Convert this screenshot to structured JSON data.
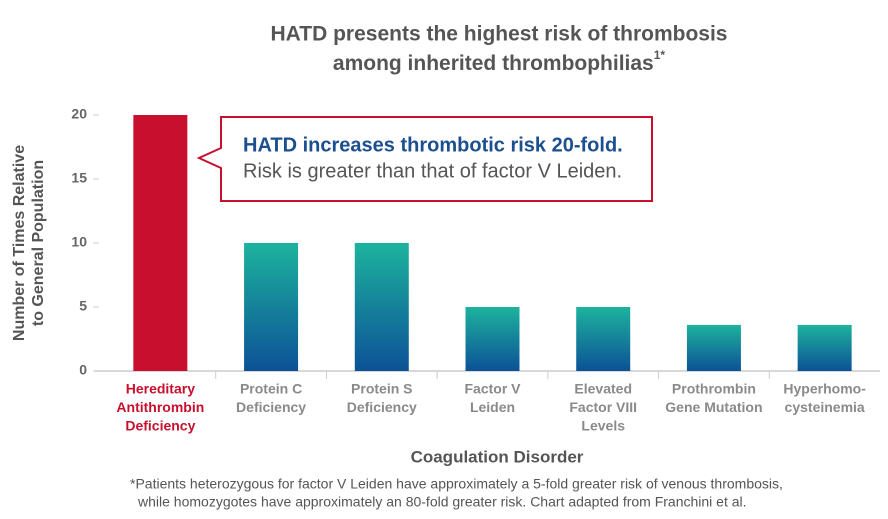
{
  "chart_data": {
    "type": "bar",
    "title": [
      "HATD presents the highest risk of thrombosis",
      "among inherited thrombophilias"
    ],
    "title_superscript": "1*",
    "callout": [
      "HATD increases thrombotic risk 20-fold.",
      "Risk is greater than that of factor V Leiden."
    ],
    "categories": [
      [
        "Hereditary",
        "Antithrombin",
        "Deficiency"
      ],
      [
        "Protein C",
        "Deficiency"
      ],
      [
        "Protein S",
        "Deficiency"
      ],
      [
        "Factor V",
        "Leiden"
      ],
      [
        "Elevated",
        "Factor VIII",
        "Levels"
      ],
      [
        "Prothrombin",
        "Gene Mutation"
      ],
      [
        "Hyperhomo-",
        "cysteinemia"
      ]
    ],
    "values": [
      20,
      10,
      10,
      5,
      5,
      3.6,
      3.6
    ],
    "gradient": [
      "#1db39e",
      "#0c5196"
    ],
    "highlight": {
      "index": 0,
      "color": "#c8102e"
    },
    "ylim": [
      0,
      20
    ],
    "yticks": [
      0,
      5,
      10,
      15,
      20
    ],
    "ylabel": [
      "Number of Times Relative",
      "to General Population"
    ],
    "xlabel": "Coagulation Disorder",
    "footnote": [
      "*Patients heterozygous for factor V Leiden have approximately a 5-fold greater risk of venous thrombosis,",
      "while homozygotes have approximately an 80-fold greater risk. Chart adapted from Franchini et al."
    ]
  }
}
